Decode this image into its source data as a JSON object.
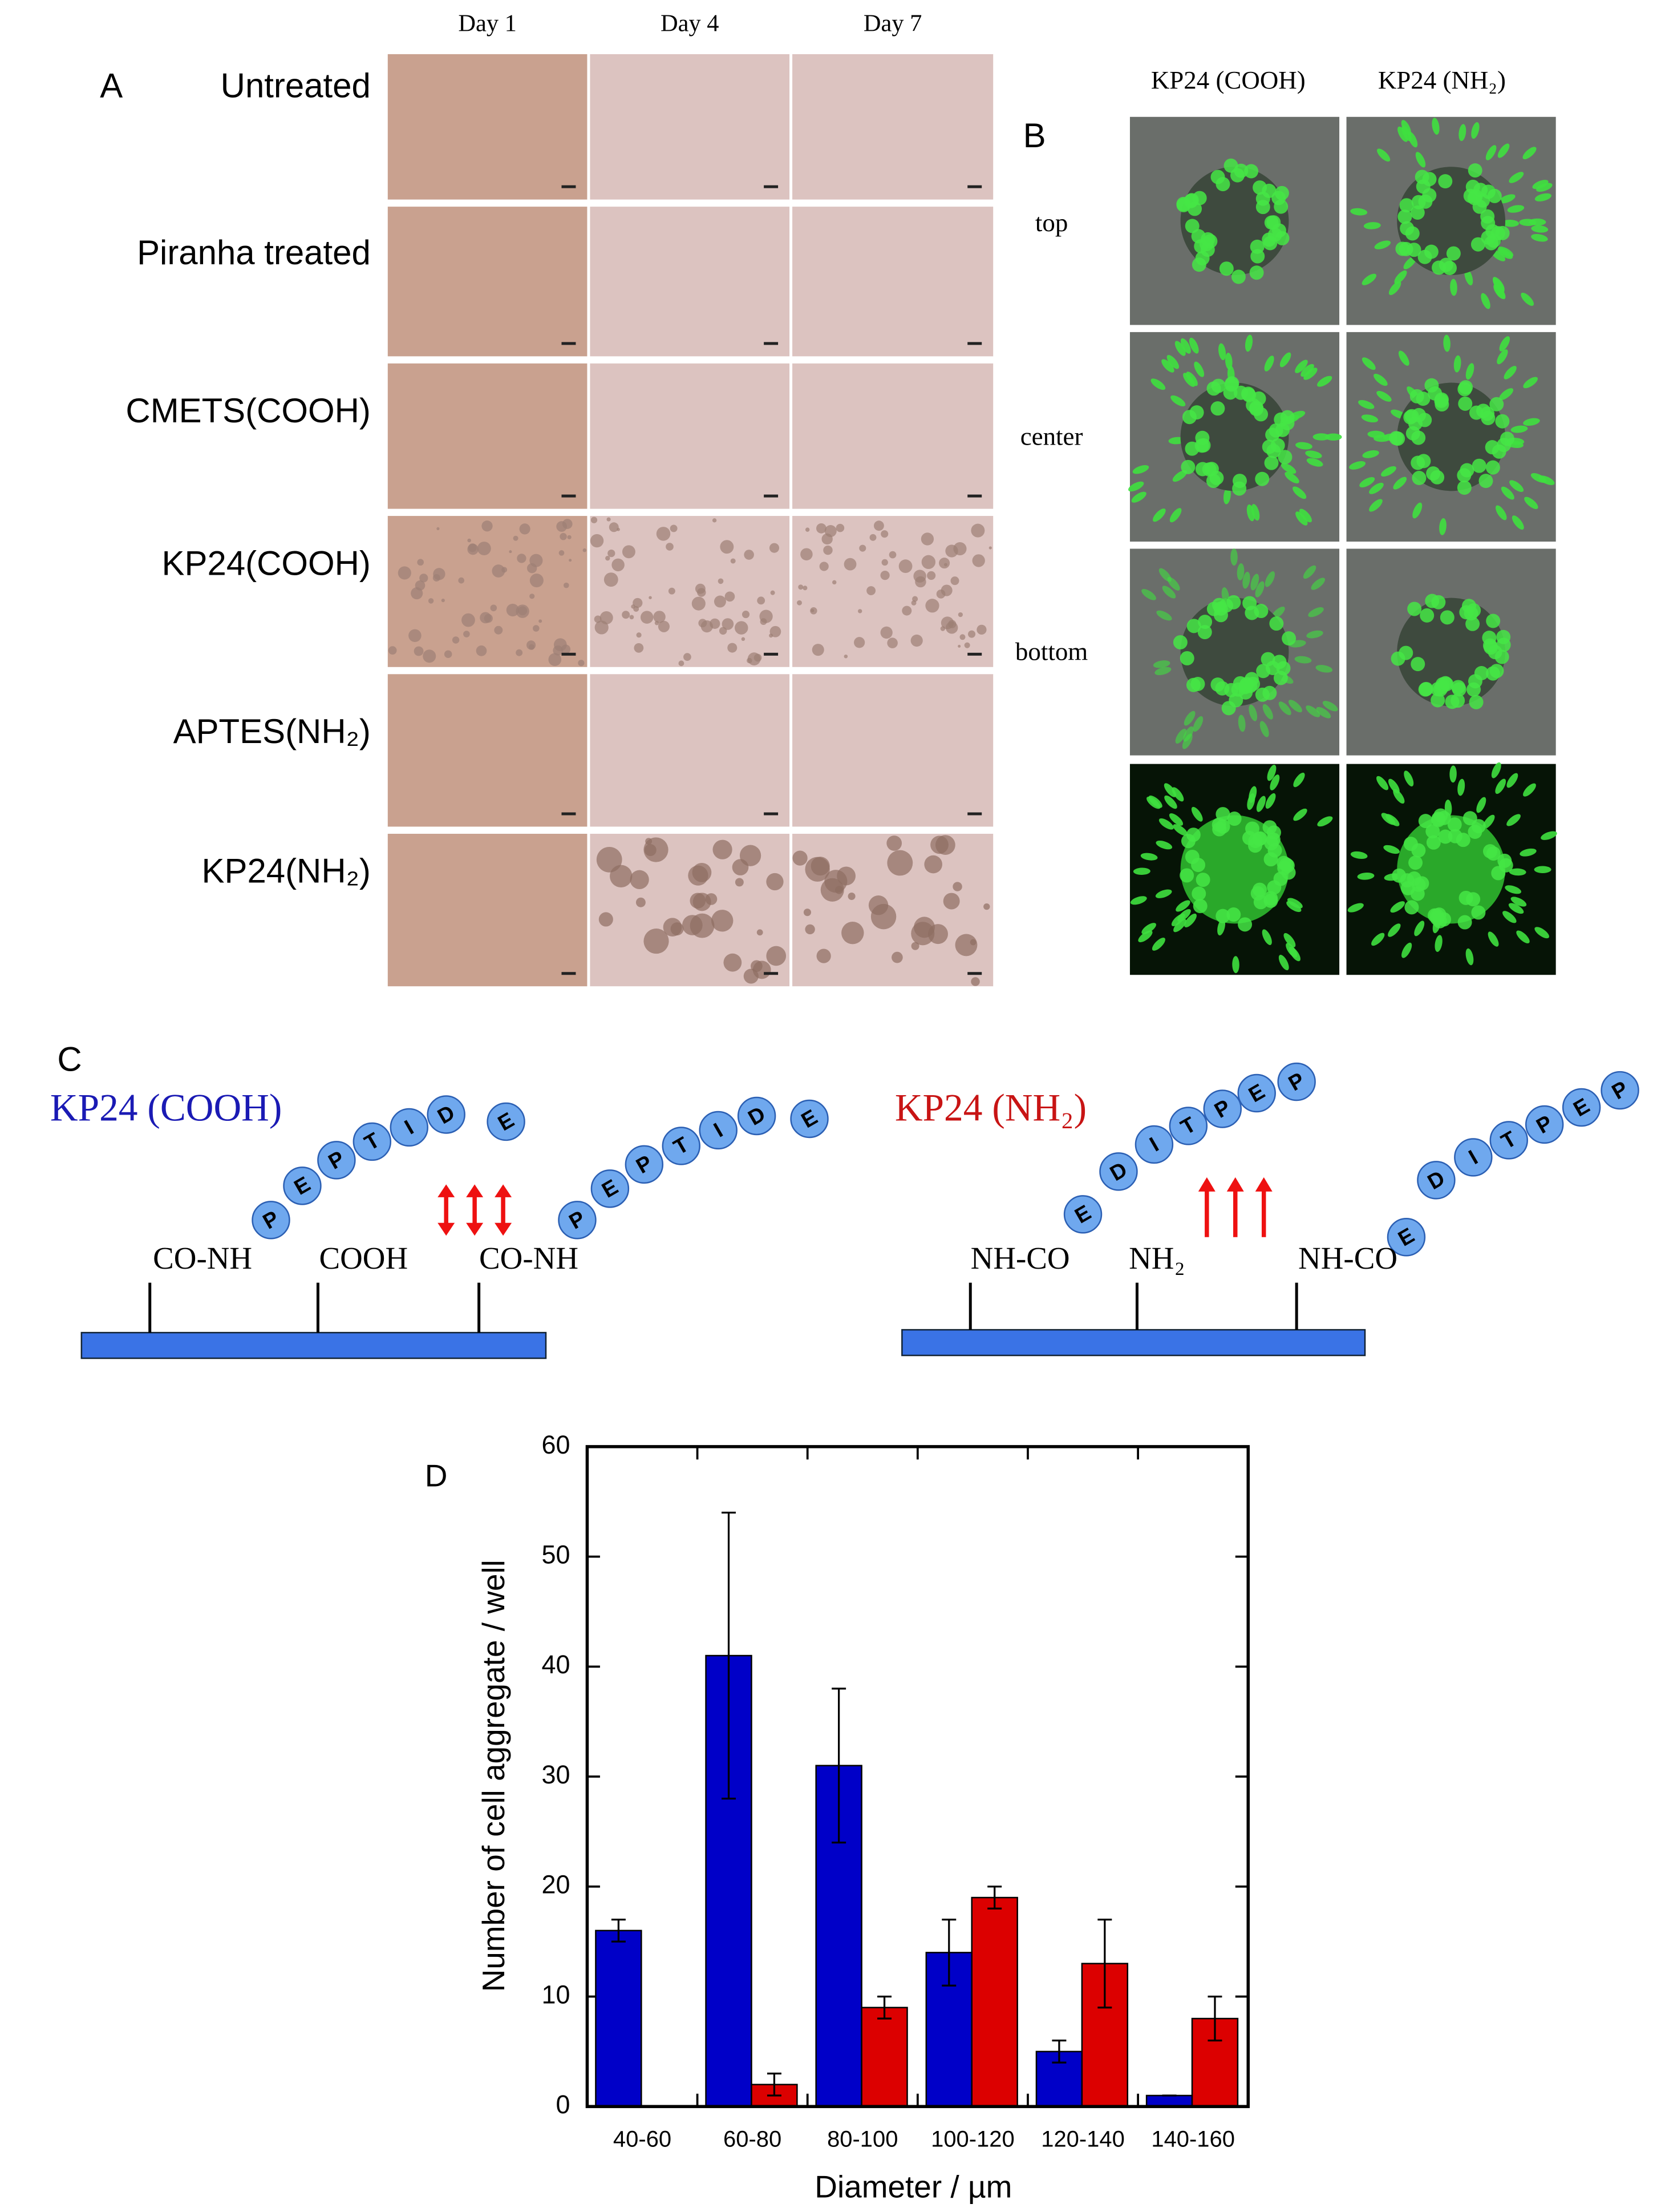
{
  "panel_a": {
    "label": "A",
    "columns": [
      "Day 1",
      "Day 4",
      "Day 7"
    ],
    "rows": [
      "Untreated",
      "Piranha treated",
      "CMETS(COOH)",
      "KP24(COOH)",
      "APTES(NH₂)",
      "KP24(NH₂)"
    ]
  },
  "panel_b": {
    "label": "B",
    "columns": [
      "KP24 (COOH)",
      "KP24 (NH₂)"
    ],
    "rows": [
      "top",
      "center",
      "bottom"
    ]
  },
  "panel_c": {
    "label": "C",
    "left": {
      "title": "KP24 (COOH)",
      "groups": [
        "CO-NH",
        "COOH",
        "CO-NH"
      ],
      "peptide": [
        "P",
        "E",
        "P",
        "T",
        "I",
        "D",
        "E"
      ]
    },
    "right": {
      "title": "KP24 (NH₂)",
      "groups": [
        "NH-CO",
        "NH₂",
        "NH-CO"
      ],
      "peptide": [
        "E",
        "D",
        "I",
        "T",
        "P",
        "E",
        "P"
      ]
    }
  },
  "chart_data": {
    "type": "bar",
    "label": "D",
    "categories": [
      "40-60",
      "60-80",
      "80-100",
      "100-120",
      "120-140",
      "140-160"
    ],
    "series": [
      {
        "color": "#0000c8",
        "values": [
          16,
          41,
          31,
          14,
          5,
          1
        ],
        "errors": [
          1,
          13,
          7,
          3,
          1,
          0
        ]
      },
      {
        "color": "#dc0000",
        "values": [
          0,
          2,
          9,
          19,
          13,
          8
        ],
        "errors": [
          0,
          1,
          1,
          1,
          4,
          2
        ]
      }
    ],
    "ylim": [
      0,
      60
    ],
    "yticks": [
      0,
      10,
      20,
      30,
      40,
      50,
      60
    ],
    "xlabel": "Diameter / µm",
    "ylabel": "Number of cell aggregate / well"
  }
}
